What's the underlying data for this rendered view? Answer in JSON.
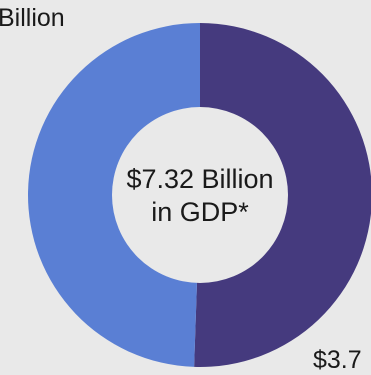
{
  "chart_data": {
    "type": "pie",
    "center_label": [
      "$7.32 Billion",
      "in GDP*"
    ],
    "slices": [
      {
        "label_text": "$3.7",
        "value": 3.7,
        "color": "#453a7e"
      },
      {
        "label_text": "Billion",
        "value": 3.62,
        "color": "#5a7fd4"
      }
    ],
    "colors": {
      "background": "#e9e9e9",
      "center": "#e9e9e9"
    }
  }
}
